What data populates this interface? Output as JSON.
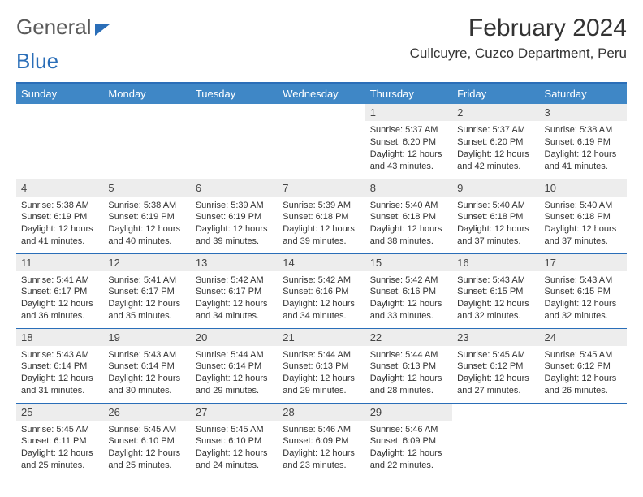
{
  "brand": {
    "part1": "General",
    "part2": "Blue"
  },
  "title": "February 2024",
  "location": "Cullcuyre, Cuzco Department, Peru",
  "colors": {
    "accent": "#3f87c6",
    "rule": "#2a6eb8",
    "daybg": "#ededed",
    "text": "#333333"
  },
  "weekdays": [
    "Sunday",
    "Monday",
    "Tuesday",
    "Wednesday",
    "Thursday",
    "Friday",
    "Saturday"
  ],
  "weeks": [
    [
      null,
      null,
      null,
      null,
      {
        "n": "1",
        "sr": "5:37 AM",
        "ss": "6:20 PM",
        "dl": "12 hours and 43 minutes."
      },
      {
        "n": "2",
        "sr": "5:37 AM",
        "ss": "6:20 PM",
        "dl": "12 hours and 42 minutes."
      },
      {
        "n": "3",
        "sr": "5:38 AM",
        "ss": "6:19 PM",
        "dl": "12 hours and 41 minutes."
      }
    ],
    [
      {
        "n": "4",
        "sr": "5:38 AM",
        "ss": "6:19 PM",
        "dl": "12 hours and 41 minutes."
      },
      {
        "n": "5",
        "sr": "5:38 AM",
        "ss": "6:19 PM",
        "dl": "12 hours and 40 minutes."
      },
      {
        "n": "6",
        "sr": "5:39 AM",
        "ss": "6:19 PM",
        "dl": "12 hours and 39 minutes."
      },
      {
        "n": "7",
        "sr": "5:39 AM",
        "ss": "6:18 PM",
        "dl": "12 hours and 39 minutes."
      },
      {
        "n": "8",
        "sr": "5:40 AM",
        "ss": "6:18 PM",
        "dl": "12 hours and 38 minutes."
      },
      {
        "n": "9",
        "sr": "5:40 AM",
        "ss": "6:18 PM",
        "dl": "12 hours and 37 minutes."
      },
      {
        "n": "10",
        "sr": "5:40 AM",
        "ss": "6:18 PM",
        "dl": "12 hours and 37 minutes."
      }
    ],
    [
      {
        "n": "11",
        "sr": "5:41 AM",
        "ss": "6:17 PM",
        "dl": "12 hours and 36 minutes."
      },
      {
        "n": "12",
        "sr": "5:41 AM",
        "ss": "6:17 PM",
        "dl": "12 hours and 35 minutes."
      },
      {
        "n": "13",
        "sr": "5:42 AM",
        "ss": "6:17 PM",
        "dl": "12 hours and 34 minutes."
      },
      {
        "n": "14",
        "sr": "5:42 AM",
        "ss": "6:16 PM",
        "dl": "12 hours and 34 minutes."
      },
      {
        "n": "15",
        "sr": "5:42 AM",
        "ss": "6:16 PM",
        "dl": "12 hours and 33 minutes."
      },
      {
        "n": "16",
        "sr": "5:43 AM",
        "ss": "6:15 PM",
        "dl": "12 hours and 32 minutes."
      },
      {
        "n": "17",
        "sr": "5:43 AM",
        "ss": "6:15 PM",
        "dl": "12 hours and 32 minutes."
      }
    ],
    [
      {
        "n": "18",
        "sr": "5:43 AM",
        "ss": "6:14 PM",
        "dl": "12 hours and 31 minutes."
      },
      {
        "n": "19",
        "sr": "5:43 AM",
        "ss": "6:14 PM",
        "dl": "12 hours and 30 minutes."
      },
      {
        "n": "20",
        "sr": "5:44 AM",
        "ss": "6:14 PM",
        "dl": "12 hours and 29 minutes."
      },
      {
        "n": "21",
        "sr": "5:44 AM",
        "ss": "6:13 PM",
        "dl": "12 hours and 29 minutes."
      },
      {
        "n": "22",
        "sr": "5:44 AM",
        "ss": "6:13 PM",
        "dl": "12 hours and 28 minutes."
      },
      {
        "n": "23",
        "sr": "5:45 AM",
        "ss": "6:12 PM",
        "dl": "12 hours and 27 minutes."
      },
      {
        "n": "24",
        "sr": "5:45 AM",
        "ss": "6:12 PM",
        "dl": "12 hours and 26 minutes."
      }
    ],
    [
      {
        "n": "25",
        "sr": "5:45 AM",
        "ss": "6:11 PM",
        "dl": "12 hours and 25 minutes."
      },
      {
        "n": "26",
        "sr": "5:45 AM",
        "ss": "6:10 PM",
        "dl": "12 hours and 25 minutes."
      },
      {
        "n": "27",
        "sr": "5:45 AM",
        "ss": "6:10 PM",
        "dl": "12 hours and 24 minutes."
      },
      {
        "n": "28",
        "sr": "5:46 AM",
        "ss": "6:09 PM",
        "dl": "12 hours and 23 minutes."
      },
      {
        "n": "29",
        "sr": "5:46 AM",
        "ss": "6:09 PM",
        "dl": "12 hours and 22 minutes."
      },
      null,
      null
    ]
  ],
  "labels": {
    "sunrise": "Sunrise: ",
    "sunset": "Sunset: ",
    "daylight": "Daylight: "
  }
}
